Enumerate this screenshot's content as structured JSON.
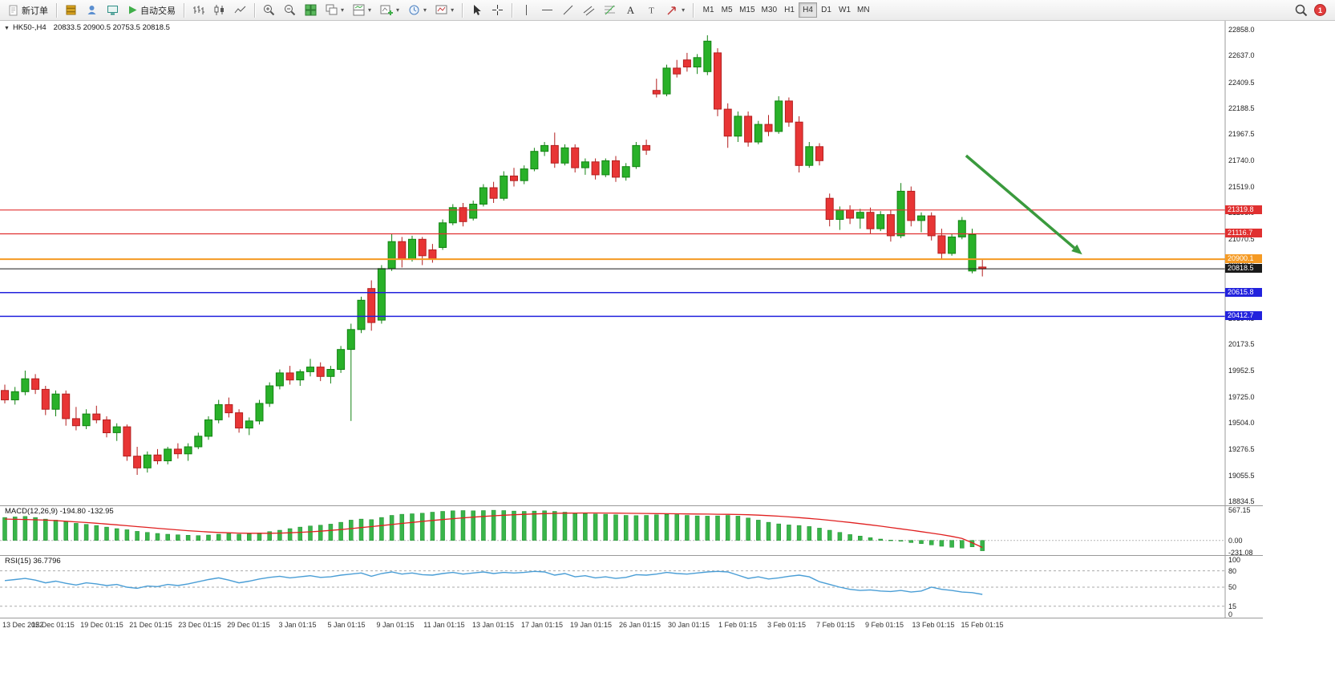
{
  "toolbar": {
    "new_order": {
      "label": "新订单"
    },
    "autotrading": {
      "label": "自动交易"
    },
    "timeframes": {
      "items": [
        "M1",
        "M5",
        "M15",
        "M30",
        "H1",
        "H4",
        "D1",
        "W1",
        "MN"
      ],
      "active": "H4"
    },
    "badge": "1"
  },
  "chart": {
    "title": "HK50-,H4",
    "quote": "20833.5 20900.5 20753.5 20818.5"
  },
  "chart_data": {
    "type": "candlestick",
    "symbol": "HK50-",
    "timeframe": "H4",
    "current_bar": {
      "open": 20833.5,
      "high": 20900.5,
      "low": 20753.5,
      "close": 20818.5
    },
    "colors": {
      "up": "#29b129",
      "up_stroke": "#128312",
      "down": "#e83535",
      "down_stroke": "#b31f1f",
      "rsi_line": "#4a9ed6",
      "macd_signal": "#e02020",
      "macd_hist": "#39b54a"
    },
    "candles": [
      [
        19780,
        19830,
        19670,
        19700
      ],
      [
        19700,
        19810,
        19660,
        19770
      ],
      [
        19770,
        19950,
        19740,
        19880
      ],
      [
        19880,
        19920,
        19750,
        19790
      ],
      [
        19790,
        19820,
        19570,
        19620
      ],
      [
        19620,
        19780,
        19560,
        19750
      ],
      [
        19750,
        19780,
        19480,
        19540
      ],
      [
        19540,
        19640,
        19440,
        19480
      ],
      [
        19480,
        19620,
        19450,
        19580
      ],
      [
        19580,
        19650,
        19500,
        19530
      ],
      [
        19530,
        19560,
        19380,
        19420
      ],
      [
        19420,
        19500,
        19350,
        19470
      ],
      [
        19470,
        19490,
        19180,
        19220
      ],
      [
        19220,
        19300,
        19060,
        19120
      ],
      [
        19120,
        19260,
        19080,
        19230
      ],
      [
        19230,
        19280,
        19150,
        19180
      ],
      [
        19180,
        19300,
        19150,
        19280
      ],
      [
        19280,
        19330,
        19200,
        19240
      ],
      [
        19240,
        19330,
        19180,
        19300
      ],
      [
        19300,
        19420,
        19280,
        19390
      ],
      [
        19390,
        19560,
        19360,
        19530
      ],
      [
        19530,
        19700,
        19500,
        19660
      ],
      [
        19660,
        19720,
        19550,
        19590
      ],
      [
        19590,
        19620,
        19420,
        19460
      ],
      [
        19460,
        19550,
        19400,
        19520
      ],
      [
        19520,
        19700,
        19490,
        19670
      ],
      [
        19670,
        19850,
        19640,
        19820
      ],
      [
        19820,
        19960,
        19790,
        19930
      ],
      [
        19930,
        19990,
        19830,
        19870
      ],
      [
        19870,
        19960,
        19820,
        19940
      ],
      [
        19940,
        20050,
        19900,
        19980
      ],
      [
        19980,
        20020,
        19860,
        19900
      ],
      [
        19900,
        19990,
        19840,
        19960
      ],
      [
        19960,
        20160,
        19930,
        20130
      ],
      [
        20130,
        20350,
        19520,
        20300
      ],
      [
        20300,
        20580,
        20270,
        20550
      ],
      [
        20650,
        20720,
        20290,
        20360
      ],
      [
        20380,
        20850,
        20350,
        20820
      ],
      [
        20820,
        21120,
        20800,
        21050
      ],
      [
        21050,
        21090,
        20830,
        20900
      ],
      [
        20900,
        21100,
        20880,
        21070
      ],
      [
        21070,
        21090,
        20850,
        20930
      ],
      [
        20980,
        21030,
        20870,
        20900
      ],
      [
        21000,
        21240,
        20980,
        21210
      ],
      [
        21210,
        21370,
        21190,
        21340
      ],
      [
        21340,
        21380,
        21180,
        21220
      ],
      [
        21250,
        21400,
        21230,
        21370
      ],
      [
        21370,
        21540,
        21350,
        21510
      ],
      [
        21510,
        21560,
        21380,
        21420
      ],
      [
        21420,
        21650,
        21400,
        21610
      ],
      [
        21610,
        21680,
        21520,
        21570
      ],
      [
        21570,
        21700,
        21540,
        21670
      ],
      [
        21670,
        21850,
        21650,
        21820
      ],
      [
        21820,
        21900,
        21780,
        21870
      ],
      [
        21870,
        21980,
        21680,
        21720
      ],
      [
        21720,
        21880,
        21700,
        21850
      ],
      [
        21850,
        21880,
        21640,
        21680
      ],
      [
        21680,
        21760,
        21620,
        21730
      ],
      [
        21730,
        21760,
        21580,
        21620
      ],
      [
        21620,
        21760,
        21600,
        21740
      ],
      [
        21740,
        21780,
        21560,
        21600
      ],
      [
        21600,
        21720,
        21570,
        21690
      ],
      [
        21690,
        21900,
        21670,
        21870
      ],
      [
        21870,
        21920,
        21790,
        21830
      ],
      [
        22340,
        22440,
        22280,
        22310
      ],
      [
        22310,
        22560,
        22290,
        22530
      ],
      [
        22530,
        22600,
        22450,
        22480
      ],
      [
        22600,
        22660,
        22500,
        22540
      ],
      [
        22540,
        22650,
        22480,
        22620
      ],
      [
        22500,
        22810,
        22470,
        22760
      ],
      [
        22660,
        22700,
        22120,
        22180
      ],
      [
        22180,
        22230,
        21850,
        21950
      ],
      [
        21950,
        22160,
        21900,
        22120
      ],
      [
        22120,
        22160,
        21860,
        21900
      ],
      [
        21900,
        22080,
        21880,
        22050
      ],
      [
        22050,
        22130,
        21950,
        21990
      ],
      [
        21990,
        22290,
        21970,
        22250
      ],
      [
        22250,
        22280,
        22030,
        22070
      ],
      [
        22070,
        22120,
        21640,
        21700
      ],
      [
        21700,
        21900,
        21680,
        21860
      ],
      [
        21860,
        21890,
        21700,
        21740
      ],
      [
        21420,
        21460,
        21180,
        21240
      ],
      [
        21240,
        21350,
        21150,
        21320
      ],
      [
        21320,
        21360,
        21200,
        21250
      ],
      [
        21250,
        21330,
        21160,
        21300
      ],
      [
        21300,
        21340,
        21120,
        21160
      ],
      [
        21160,
        21310,
        21140,
        21280
      ],
      [
        21280,
        21320,
        21050,
        21100
      ],
      [
        21100,
        21550,
        21080,
        21480
      ],
      [
        21480,
        21520,
        21180,
        21230
      ],
      [
        21230,
        21300,
        21130,
        21270
      ],
      [
        21270,
        21300,
        21060,
        21100
      ],
      [
        21100,
        21160,
        20900,
        20950
      ],
      [
        20950,
        21120,
        20930,
        21090
      ],
      [
        21090,
        21260,
        21070,
        21230
      ],
      [
        20800,
        21160,
        20780,
        21110
      ],
      [
        20833.5,
        20900.5,
        20753.5,
        20818.5
      ]
    ],
    "hlines": [
      {
        "price": 21319.8,
        "color": "#e03030",
        "width": 1.2
      },
      {
        "price": 21116.7,
        "color": "#e03030",
        "width": 1.2
      },
      {
        "price": 20900.1,
        "color": "#f59a23",
        "width": 2
      },
      {
        "price": 20818.5,
        "color": "#1a1a1a",
        "width": 1
      },
      {
        "price": 20615.8,
        "color": "#2222dd",
        "width": 1.5
      },
      {
        "price": 20412.7,
        "color": "#2222dd",
        "width": 1.5
      }
    ],
    "price_axis": [
      22858.0,
      22637.0,
      22409.5,
      22188.5,
      21967.5,
      21740.0,
      21519.0,
      21298.0,
      21070.5,
      20849.5,
      20628.5,
      20394.5,
      20173.5,
      19952.5,
      19725.0,
      19504.0,
      19276.5,
      19055.5,
      18834.5
    ],
    "time_axis": [
      "13 Dec 2022",
      "15 Dec 01:15",
      "19 Dec 01:15",
      "21 Dec 01:15",
      "23 Dec 01:15",
      "29 Dec 01:15",
      "3 Jan 01:15",
      "5 Jan 01:15",
      "9 Jan 01:15",
      "11 Jan 01:15",
      "13 Jan 01:15",
      "17 Jan 01:15",
      "19 Jan 01:15",
      "26 Jan 01:15",
      "30 Jan 01:15",
      "1 Feb 01:15",
      "3 Feb 01:15",
      "7 Feb 01:15",
      "9 Feb 01:15",
      "13 Feb 01:15",
      "15 Feb 01:15"
    ],
    "arrow": {
      "from_index": 94.4,
      "from_price": 21784,
      "to_index": 105.8,
      "to_price": 20940,
      "color": "#3a9a3d"
    },
    "macd": {
      "label": "MACD(12,26,9)",
      "values_text": "-194.80 -132.95",
      "axis": [
        567.15,
        0,
        -231.08
      ],
      "histogram": [
        430,
        440,
        450,
        430,
        400,
        380,
        350,
        320,
        300,
        280,
        250,
        220,
        200,
        170,
        150,
        130,
        115,
        105,
        95,
        90,
        100,
        115,
        130,
        115,
        120,
        140,
        165,
        190,
        220,
        250,
        270,
        285,
        305,
        340,
        380,
        400,
        390,
        430,
        470,
        490,
        500,
        510,
        530,
        545,
        555,
        560,
        555,
        560,
        565,
        560,
        550,
        545,
        550,
        555,
        545,
        530,
        515,
        505,
        495,
        490,
        480,
        470,
        465,
        470,
        480,
        490,
        485,
        470,
        460,
        455,
        460,
        470,
        455,
        420,
        380,
        340,
        310,
        290,
        280,
        260,
        230,
        190,
        150,
        110,
        80,
        50,
        25,
        5,
        -15,
        -40,
        -60,
        -85,
        -110,
        -130,
        -145,
        -120,
        -194.8
      ],
      "signal": [
        400,
        396,
        392,
        387,
        380,
        371,
        360,
        348,
        335,
        321,
        306,
        291,
        275,
        259,
        243,
        227,
        211,
        196,
        182,
        169,
        158,
        149,
        142,
        137,
        134,
        133,
        134,
        137,
        143,
        151,
        161,
        173,
        187,
        203,
        221,
        240,
        259,
        278,
        298,
        318,
        337,
        356,
        374,
        391,
        407,
        422,
        436,
        449,
        461,
        472,
        481,
        489,
        496,
        502,
        507,
        511,
        513,
        514,
        514,
        513,
        511,
        509,
        507,
        505,
        503,
        501,
        499,
        497,
        495,
        493,
        491,
        489,
        486,
        481,
        474,
        465,
        454,
        441,
        427,
        412,
        395,
        377,
        357,
        336,
        314,
        291,
        267,
        242,
        216,
        190,
        163,
        136,
        108,
        75,
        35,
        -45,
        -132.95
      ]
    },
    "rsi": {
      "label": "RSI(15)",
      "value_text": "36.7796",
      "axis": [
        100,
        80,
        50,
        15,
        0
      ],
      "levels": [
        80,
        50,
        15
      ],
      "values": [
        62,
        64,
        66,
        63,
        58,
        61,
        57,
        54,
        58,
        56,
        53,
        55,
        50,
        48,
        52,
        51,
        55,
        53,
        56,
        60,
        64,
        67,
        63,
        58,
        61,
        65,
        68,
        70,
        67,
        69,
        71,
        68,
        69,
        72,
        74,
        76,
        70,
        75,
        78,
        74,
        76,
        73,
        72,
        75,
        77,
        74,
        76,
        78,
        75,
        77,
        76,
        77,
        79,
        78,
        72,
        75,
        69,
        71,
        67,
        69,
        66,
        68,
        73,
        72,
        74,
        77,
        75,
        74,
        76,
        78,
        79,
        78,
        72,
        66,
        69,
        65,
        67,
        70,
        72,
        69,
        60,
        55,
        50,
        46,
        44,
        45,
        43,
        42,
        44,
        41,
        43,
        50,
        46,
        44,
        41,
        40,
        36.78
      ]
    }
  }
}
